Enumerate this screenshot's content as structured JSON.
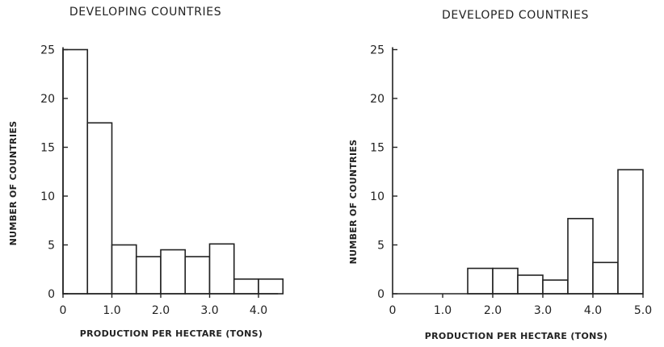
{
  "chart_data": [
    {
      "type": "bar",
      "title": "DEVELOPING COUNTRIES",
      "xlabel": "PRODUCTION PER HECTARE (TONS)",
      "ylabel": "NUMBER OF COUNTRIES",
      "bin_width": 0.5,
      "xlim": [
        0,
        4.4
      ],
      "ylim": [
        0,
        25
      ],
      "x_ticks": [
        0,
        1.0,
        2.0,
        3.0,
        4.0
      ],
      "x_tick_labels": [
        "0",
        "1.0",
        "2.0",
        "3.0",
        "4.0"
      ],
      "y_ticks": [
        0,
        5,
        10,
        15,
        20,
        25
      ],
      "y_tick_labels": [
        "0",
        "5",
        "10",
        "15",
        "20",
        "25"
      ],
      "bins": [
        {
          "start": 0.0,
          "value": 25
        },
        {
          "start": 0.5,
          "value": 17.5
        },
        {
          "start": 1.0,
          "value": 5
        },
        {
          "start": 1.5,
          "value": 3.8
        },
        {
          "start": 2.0,
          "value": 4.5
        },
        {
          "start": 2.5,
          "value": 3.8
        },
        {
          "start": 3.0,
          "value": 5.1
        },
        {
          "start": 3.5,
          "value": 1.5
        },
        {
          "start": 4.0,
          "value": 1.5
        }
      ],
      "grid": false
    },
    {
      "type": "bar",
      "title": "DEVELOPED COUNTRIES",
      "xlabel": "PRODUCTION PER HECTARE (TONS)",
      "ylabel": "NUMBER OF COUNTRIES",
      "bin_width": 0.5,
      "xlim": [
        0,
        5.0
      ],
      "ylim": [
        0,
        25
      ],
      "x_ticks": [
        0,
        1.0,
        2.0,
        3.0,
        4.0,
        5.0
      ],
      "x_tick_labels": [
        "0",
        "1.0",
        "2.0",
        "3.0",
        "4.0",
        "5.0"
      ],
      "y_ticks": [
        0,
        5,
        10,
        15,
        20,
        25
      ],
      "y_tick_labels": [
        "0",
        "5",
        "10",
        "15",
        "20",
        "25"
      ],
      "bins": [
        {
          "start": 1.5,
          "value": 2.6
        },
        {
          "start": 2.0,
          "value": 2.6
        },
        {
          "start": 2.5,
          "value": 1.9
        },
        {
          "start": 3.0,
          "value": 1.4
        },
        {
          "start": 3.5,
          "value": 7.7
        },
        {
          "start": 4.0,
          "value": 3.2
        },
        {
          "start": 4.5,
          "value": 12.7
        }
      ],
      "grid": false
    }
  ]
}
